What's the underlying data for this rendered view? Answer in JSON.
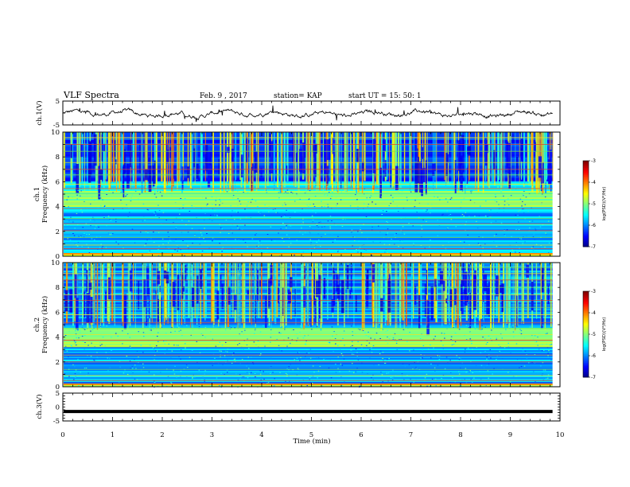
{
  "header": {
    "title": "VLF Spectra",
    "date": "Feb. 9 , 2017",
    "station": "station= KAP",
    "start": "start UT = 15: 50: 1"
  },
  "chart_data": [
    {
      "type": "line",
      "panel": "ch1-waveform",
      "ylabel": "ch.1(V)",
      "ylim": [
        -5,
        5
      ],
      "yticks": [
        "5",
        "-5"
      ],
      "xlim": [
        0,
        10
      ],
      "note_x_end": 9.85,
      "color": "#000000"
    },
    {
      "type": "heatmap",
      "panel": "ch1-spectrogram",
      "ylabel": "ch.1\nFrequency (kHz)",
      "ylim": [
        0,
        10
      ],
      "yticks": [
        "0",
        "2",
        "4",
        "6",
        "8",
        "10"
      ],
      "xlim": [
        0,
        10
      ],
      "data_x_end": 9.85
    },
    {
      "type": "heatmap",
      "panel": "ch2-spectrogram",
      "ylabel": "ch.2\nFrequency (kHz)",
      "ylim": [
        0,
        10
      ],
      "yticks": [
        "0",
        "2",
        "4",
        "6",
        "8",
        "10"
      ],
      "xlim": [
        0,
        10
      ],
      "data_x_end": 9.85
    },
    {
      "type": "line",
      "panel": "ch3-waveform",
      "ylabel": "ch.3(V)",
      "ylim": [
        -5,
        5
      ],
      "yticks": [
        "5",
        "0",
        "-5"
      ],
      "xlim": [
        0,
        10
      ],
      "xlabel": "Time (min)",
      "xticks": [
        "0",
        "1",
        "2",
        "3",
        "4",
        "5",
        "6",
        "7",
        "8",
        "9",
        "10"
      ],
      "constant_value": -1.6,
      "color": "#000000"
    }
  ],
  "colorbars": [
    {
      "label": "log(PSD)(V²/Hz)",
      "ticks": [
        "-3",
        "-4",
        "-5",
        "-6",
        "-7"
      ],
      "range": [
        -7,
        -3
      ]
    },
    {
      "label": "log(PSD)(V²/Hz)",
      "ticks": [
        "-3",
        "-4",
        "-5",
        "-6",
        "-7"
      ],
      "range": [
        -7,
        -3
      ]
    }
  ]
}
